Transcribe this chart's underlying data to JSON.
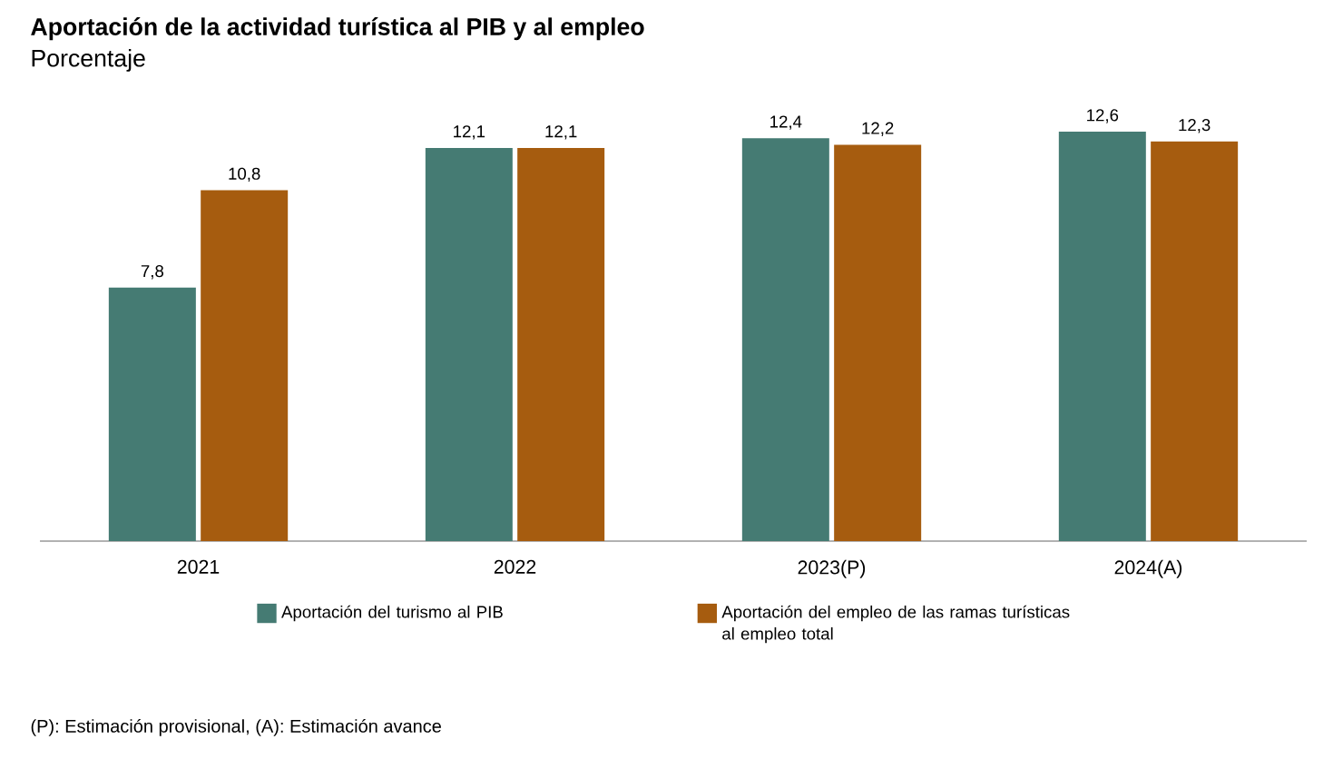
{
  "chart_data": {
    "type": "bar",
    "title": "Aportación de la actividad turística al PIB y al empleo",
    "subtitle": "Porcentaje",
    "categories": [
      "2021",
      "2022",
      "2023(P)",
      "2024(A)"
    ],
    "series": [
      {
        "name": "Aportación del turismo al PIB",
        "color": "#457b73",
        "values": [
          7.8,
          12.1,
          12.4,
          12.6
        ],
        "value_labels": [
          "7,8",
          "12,1",
          "12,4",
          "12,6"
        ]
      },
      {
        "name": "Aportación del empleo de las ramas turísticas al empleo total",
        "color": "#a65c0f",
        "values": [
          10.8,
          12.1,
          12.2,
          12.3
        ],
        "value_labels": [
          "10,8",
          "12,1",
          "12,2",
          "12,3"
        ]
      }
    ],
    "legend": "bottom",
    "annotations": [
      "(P): Estimación provisional, (A): Estimación avance"
    ]
  }
}
